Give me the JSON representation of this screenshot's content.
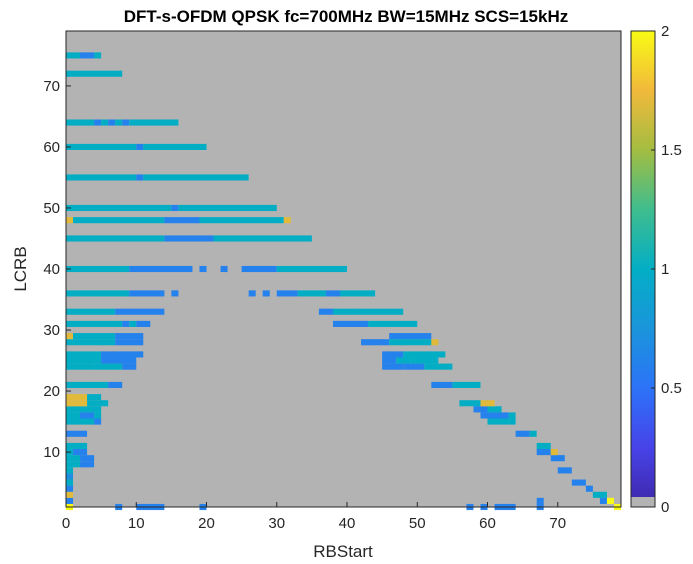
{
  "chart_data": {
    "type": "heatmap",
    "title": "DFT-s-OFDM QPSK fc=700MHz BW=15MHz SCS=15kHz",
    "xlabel": "RBStart",
    "ylabel": "LCRB",
    "xlim": [
      0,
      79
    ],
    "ylim": [
      1,
      79
    ],
    "xticks": [
      0,
      10,
      20,
      30,
      40,
      50,
      60,
      70
    ],
    "yticks": [
      10,
      20,
      30,
      40,
      50,
      60,
      70
    ],
    "colorbar": {
      "min": 0,
      "max": 2,
      "ticks": [
        0,
        0.5,
        1,
        1.5,
        2
      ],
      "colormap": "parula"
    },
    "background_value": 0,
    "rows": [
      {
        "lcrb": 1,
        "segments": [
          [
            0,
            1,
            2.0
          ],
          [
            7,
            8,
            0.6
          ],
          [
            10,
            14,
            0.6
          ],
          [
            19,
            20,
            0.6
          ],
          [
            57,
            58,
            0.6
          ],
          [
            59,
            60,
            0.6
          ],
          [
            61,
            64,
            0.6
          ],
          [
            67,
            68,
            0.6
          ],
          [
            78,
            79,
            2.0
          ]
        ]
      },
      {
        "lcrb": 2,
        "segments": [
          [
            0,
            1,
            0.6
          ],
          [
            67,
            68,
            0.6
          ],
          [
            76,
            77,
            0.6
          ],
          [
            77,
            78,
            2.0
          ]
        ]
      },
      {
        "lcrb": 3,
        "segments": [
          [
            0,
            1,
            1.7
          ],
          [
            75,
            77,
            1.0
          ]
        ]
      },
      {
        "lcrb": 4,
        "segments": [
          [
            0,
            1,
            0.6
          ],
          [
            74,
            75,
            0.6
          ]
        ]
      },
      {
        "lcrb": 5,
        "segments": [
          [
            0,
            1,
            1.0
          ],
          [
            72,
            74,
            0.6
          ]
        ]
      },
      {
        "lcrb": 6,
        "segments": [
          [
            0,
            1,
            0.7
          ]
        ]
      },
      {
        "lcrb": 7,
        "segments": [
          [
            0,
            1,
            1.0
          ],
          [
            70,
            72,
            0.6
          ]
        ]
      },
      {
        "lcrb": 8,
        "segments": [
          [
            0,
            2,
            1.0
          ],
          [
            2,
            4,
            0.6
          ]
        ]
      },
      {
        "lcrb": 9,
        "segments": [
          [
            0,
            2,
            1.0
          ],
          [
            2,
            4,
            0.6
          ],
          [
            69,
            71,
            0.6
          ]
        ]
      },
      {
        "lcrb": 10,
        "segments": [
          [
            0,
            1,
            1.0
          ],
          [
            1,
            3,
            0.6
          ],
          [
            67,
            69,
            0.6
          ],
          [
            69,
            70,
            1.7
          ]
        ]
      },
      {
        "lcrb": 11,
        "segments": [
          [
            0,
            3,
            1.0
          ],
          [
            67,
            69,
            1.0
          ]
        ]
      },
      {
        "lcrb": 13,
        "segments": [
          [
            0,
            1,
            0.6
          ],
          [
            1,
            3,
            0.6
          ],
          [
            64,
            66,
            0.6
          ],
          [
            66,
            67,
            1.0
          ]
        ]
      },
      {
        "lcrb": 15,
        "segments": [
          [
            0,
            4,
            1.0
          ],
          [
            4,
            5,
            0.6
          ],
          [
            60,
            63,
            1.0
          ],
          [
            63,
            64,
            1.0
          ]
        ]
      },
      {
        "lcrb": 16,
        "segments": [
          [
            0,
            2,
            1.0
          ],
          [
            2,
            4,
            0.6
          ],
          [
            4,
            5,
            1.0
          ],
          [
            59,
            63,
            0.6
          ],
          [
            63,
            64,
            1.0
          ]
        ]
      },
      {
        "lcrb": 17,
        "segments": [
          [
            0,
            5,
            1.0
          ],
          [
            58,
            60,
            0.6
          ],
          [
            60,
            62,
            1.0
          ]
        ]
      },
      {
        "lcrb": 18,
        "segments": [
          [
            0,
            1,
            1.7
          ],
          [
            1,
            3,
            1.7
          ],
          [
            3,
            6,
            1.0
          ],
          [
            56,
            59,
            1.0
          ],
          [
            59,
            61,
            1.7
          ]
        ]
      },
      {
        "lcrb": 19,
        "segments": [
          [
            0,
            3,
            1.7
          ],
          [
            3,
            5,
            1.0
          ]
        ]
      },
      {
        "lcrb": 21,
        "segments": [
          [
            0,
            6,
            1.0
          ],
          [
            6,
            8,
            0.6
          ],
          [
            52,
            55,
            0.6
          ],
          [
            55,
            59,
            1.0
          ]
        ]
      },
      {
        "lcrb": 24,
        "segments": [
          [
            0,
            4,
            1.0
          ],
          [
            4,
            8,
            1.0
          ],
          [
            8,
            10,
            0.6
          ],
          [
            45,
            48,
            0.6
          ],
          [
            48,
            51,
            0.6
          ],
          [
            51,
            55,
            1.0
          ]
        ]
      },
      {
        "lcrb": 25,
        "segments": [
          [
            0,
            5,
            1.0
          ],
          [
            5,
            10,
            0.6
          ],
          [
            45,
            47,
            0.6
          ],
          [
            47,
            49,
            1.0
          ],
          [
            49,
            53,
            1.0
          ]
        ]
      },
      {
        "lcrb": 26,
        "segments": [
          [
            0,
            5,
            1.0
          ],
          [
            5,
            11,
            0.6
          ],
          [
            45,
            48,
            0.6
          ],
          [
            48,
            54,
            1.0
          ]
        ]
      },
      {
        "lcrb": 28,
        "segments": [
          [
            0,
            7,
            1.0
          ],
          [
            7,
            11,
            0.6
          ],
          [
            42,
            46,
            0.6
          ],
          [
            46,
            52,
            1.0
          ],
          [
            52,
            53,
            1.7
          ]
        ]
      },
      {
        "lcrb": 29,
        "segments": [
          [
            0,
            1,
            1.7
          ],
          [
            1,
            7,
            1.0
          ],
          [
            7,
            11,
            0.6
          ],
          [
            46,
            52,
            0.6
          ]
        ]
      },
      {
        "lcrb": 31,
        "segments": [
          [
            0,
            8,
            1.0
          ],
          [
            8,
            9,
            0.6
          ],
          [
            9,
            10,
            1.0
          ],
          [
            10,
            12,
            0.6
          ],
          [
            38,
            43,
            0.6
          ],
          [
            43,
            50,
            1.0
          ]
        ]
      },
      {
        "lcrb": 33,
        "segments": [
          [
            0,
            7,
            1.0
          ],
          [
            7,
            14,
            0.6
          ],
          [
            36,
            38,
            0.6
          ],
          [
            38,
            41,
            1.0
          ],
          [
            41,
            48,
            1.0
          ]
        ]
      },
      {
        "lcrb": 36,
        "segments": [
          [
            0,
            9,
            1.0
          ],
          [
            9,
            14,
            0.6
          ],
          [
            15,
            16,
            0.6
          ],
          [
            26,
            27,
            0.6
          ],
          [
            28,
            29,
            0.6
          ],
          [
            30,
            33,
            0.6
          ],
          [
            33,
            37,
            1.0
          ],
          [
            37,
            39,
            0.6
          ],
          [
            39,
            44,
            1.0
          ]
        ]
      },
      {
        "lcrb": 40,
        "segments": [
          [
            0,
            9,
            1.0
          ],
          [
            9,
            18,
            0.6
          ],
          [
            19,
            20,
            0.6
          ],
          [
            22,
            23,
            0.6
          ],
          [
            25,
            30,
            0.6
          ],
          [
            30,
            40,
            1.0
          ]
        ]
      },
      {
        "lcrb": 45,
        "segments": [
          [
            0,
            14,
            1.0
          ],
          [
            14,
            21,
            0.6
          ],
          [
            21,
            35,
            1.0
          ]
        ]
      },
      {
        "lcrb": 48,
        "segments": [
          [
            0,
            1,
            1.7
          ],
          [
            1,
            14,
            1.0
          ],
          [
            14,
            19,
            0.6
          ],
          [
            19,
            31,
            1.0
          ],
          [
            31,
            32,
            1.7
          ]
        ]
      },
      {
        "lcrb": 50,
        "segments": [
          [
            0,
            15,
            1.0
          ],
          [
            15,
            16,
            0.6
          ],
          [
            16,
            30,
            1.0
          ]
        ]
      },
      {
        "lcrb": 55,
        "segments": [
          [
            0,
            10,
            1.0
          ],
          [
            10,
            11,
            0.6
          ],
          [
            11,
            26,
            1.0
          ]
        ]
      },
      {
        "lcrb": 60,
        "segments": [
          [
            0,
            10,
            1.0
          ],
          [
            10,
            11,
            0.6
          ],
          [
            11,
            20,
            1.0
          ]
        ]
      },
      {
        "lcrb": 64,
        "segments": [
          [
            0,
            4,
            1.0
          ],
          [
            4,
            5,
            0.6
          ],
          [
            5,
            6,
            1.0
          ],
          [
            6,
            7,
            0.6
          ],
          [
            7,
            8,
            1.0
          ],
          [
            8,
            9,
            0.6
          ],
          [
            9,
            16,
            1.0
          ]
        ]
      },
      {
        "lcrb": 72,
        "segments": [
          [
            0,
            8,
            1.0
          ]
        ]
      },
      {
        "lcrb": 75,
        "segments": [
          [
            0,
            2,
            1.0
          ],
          [
            2,
            4,
            0.6
          ],
          [
            4,
            5,
            1.0
          ]
        ]
      }
    ]
  }
}
